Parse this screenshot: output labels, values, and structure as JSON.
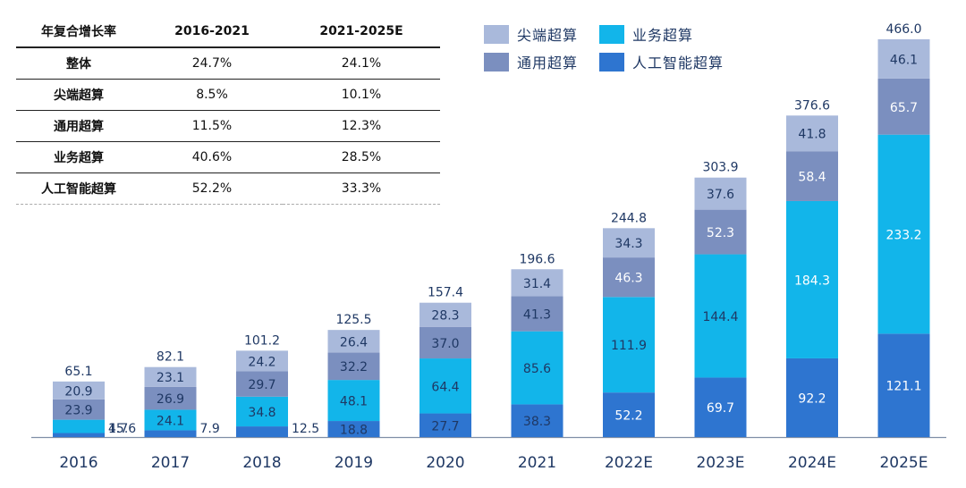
{
  "cagr_table": {
    "header": [
      "年复合增长率",
      "2016-2021",
      "2021-2025E"
    ],
    "rows": [
      {
        "label": "整体",
        "v1": "24.7%",
        "v2": "24.1%"
      },
      {
        "label": "尖端超算",
        "v1": "8.5%",
        "v2": "10.1%"
      },
      {
        "label": "通用超算",
        "v1": "11.5%",
        "v2": "12.3%"
      },
      {
        "label": "业务超算",
        "v1": "40.6%",
        "v2": "28.5%"
      },
      {
        "label": "人工智能超算",
        "v1": "52.2%",
        "v2": "33.3%"
      }
    ]
  },
  "chart_data": {
    "type": "bar",
    "stacked": true,
    "categories": [
      "2016",
      "2017",
      "2018",
      "2019",
      "2020",
      "2021",
      "2022E",
      "2023E",
      "2024E",
      "2025E"
    ],
    "series": [
      {
        "name": "人工智能超算",
        "color": "#2e75d0",
        "values": [
          4.7,
          7.9,
          12.5,
          18.8,
          27.7,
          38.3,
          52.2,
          69.7,
          92.2,
          121.1
        ]
      },
      {
        "name": "业务超算",
        "color": "#12b5ea",
        "values": [
          15.6,
          24.1,
          34.8,
          48.1,
          64.4,
          85.6,
          111.9,
          144.4,
          184.3,
          233.2
        ]
      },
      {
        "name": "通用超算",
        "color": "#7b8fbf",
        "values": [
          23.9,
          26.9,
          29.7,
          32.2,
          37.0,
          41.3,
          46.3,
          52.3,
          58.4,
          65.7
        ]
      },
      {
        "name": "尖端超算",
        "color": "#a9b9db",
        "values": [
          20.9,
          23.1,
          24.2,
          26.4,
          28.3,
          31.4,
          34.3,
          37.6,
          41.8,
          46.1
        ]
      }
    ],
    "totals": [
      "65.1",
      "82.1",
      "101.2",
      "125.5",
      "157.4",
      "196.6",
      "244.8",
      "303.9",
      "376.6",
      "466.0"
    ],
    "legend": {
      "placement": "top-right",
      "order": [
        "尖端超算",
        "业务超算",
        "通用超算",
        "人工智能超算"
      ]
    },
    "ylim": [
      0,
      466
    ],
    "grid": false,
    "colors": {
      "segment_label_dark": "#1f3864",
      "segment_label_light": "#ffffff",
      "axis_label": "#1f3864"
    }
  }
}
